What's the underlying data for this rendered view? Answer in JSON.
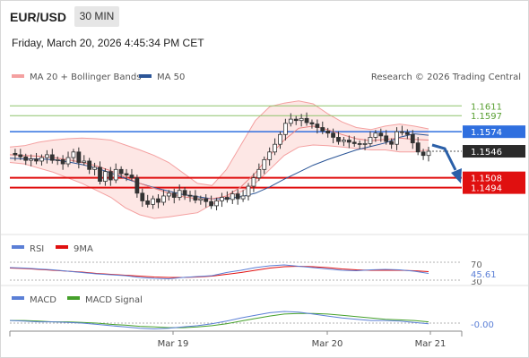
{
  "header": {
    "symbol": "EUR/USD",
    "timeframe": "30 MIN",
    "datetime": "Friday, March 20, 2026 4:45:34 PM CET"
  },
  "legend": {
    "bollinger": "MA 20 + Bollinger Bands",
    "ma50": "MA 50",
    "credit": "Research © 2026 Trading Central",
    "rsi": "RSI",
    "rsi_ma": "9MA",
    "macd": "MACD",
    "macd_signal": "MACD Signal"
  },
  "colors": {
    "candle": "#333333",
    "bollinger": "#f4a0a0",
    "bollinger_fill": "#fde3e1",
    "ma50": "#2b5597",
    "resistance": "#8dc46a",
    "pivot": "#2f6fdf",
    "support": "#e01010",
    "arrow": "#2a5fa8",
    "rsi": "#5b7fd6",
    "rsi_ma": "#e01010",
    "macd": "#5b7fd6",
    "macd_signal": "#45a02a"
  },
  "chart_data": {
    "type": "candlestick",
    "y_range": [
      1.1432,
      1.1637
    ],
    "levels": {
      "resistance": [
        1.1611,
        1.1597
      ],
      "pivot": 1.1574,
      "last_price": 1.1546,
      "support": [
        1.1508,
        1.1494
      ]
    },
    "x_ticks": [
      "Mar 19",
      "Mar 20",
      "Mar 21"
    ],
    "rsi": {
      "level_high": "70",
      "value": "45.61",
      "level_low": "30"
    },
    "macd": {
      "value": "-0.00"
    },
    "close_path": [
      1.1543,
      1.1541,
      1.1538,
      1.1533,
      1.1535,
      1.1532,
      1.1537,
      1.1541,
      1.1533,
      1.1534,
      1.1528,
      1.1537,
      1.1545,
      1.153,
      1.1532,
      1.152,
      1.1523,
      1.1503,
      1.1517,
      1.1505,
      1.152,
      1.1514,
      1.1512,
      1.1508,
      1.1486,
      1.1475,
      1.147,
      1.1478,
      1.1473,
      1.1482,
      1.1486,
      1.148,
      1.149,
      1.1483,
      1.1482,
      1.1476,
      1.1478,
      1.1474,
      1.1468,
      1.1475,
      1.148,
      1.1477,
      1.1485,
      1.1478,
      1.1482,
      1.1496,
      1.1508,
      1.152,
      1.1534,
      1.1545,
      1.1556,
      1.157,
      1.1586,
      1.1592,
      1.159,
      1.1593,
      1.1587,
      1.1585,
      1.158,
      1.1575,
      1.1572,
      1.1566,
      1.156,
      1.1562,
      1.1559,
      1.1557,
      1.1556,
      1.1557,
      1.1566,
      1.1572,
      1.1568,
      1.156,
      1.1556,
      1.1574,
      1.1573,
      1.157,
      1.1558,
      1.1545,
      1.154,
      1.1546
    ],
    "bollinger_upper": [
      1.1552,
      1.1554,
      1.1559,
      1.1562,
      1.1564,
      1.1565,
      1.1564,
      1.1562,
      1.1555,
      1.1548,
      1.154,
      1.153,
      1.1515,
      1.15,
      1.1497,
      1.152,
      1.1555,
      1.159,
      1.161,
      1.1615,
      1.1618,
      1.1614,
      1.16,
      1.1588,
      1.158,
      1.1577,
      1.1582,
      1.1585,
      1.1582,
      1.1578
    ],
    "bollinger_lower": [
      1.153,
      1.1528,
      1.1522,
      1.1516,
      1.1508,
      1.15,
      1.149,
      1.148,
      1.1465,
      1.1455,
      1.145,
      1.1452,
      1.1455,
      1.1458,
      1.147,
      1.148,
      1.1488,
      1.15,
      1.152,
      1.154,
      1.1552,
      1.1555,
      1.1554,
      1.1552,
      1.155,
      1.1548,
      1.1548,
      1.1545,
      1.1545,
      1.1548
    ],
    "ma20": [
      1.1541,
      1.154,
      1.1539,
      1.1537,
      1.1534,
      1.153,
      1.1525,
      1.1518,
      1.1509,
      1.15,
      1.1493,
      1.1486,
      1.1481,
      1.1478,
      1.1478,
      1.1482,
      1.1495,
      1.1515,
      1.154,
      1.1562,
      1.1579,
      1.1582,
      1.1577,
      1.157,
      1.1564,
      1.1561,
      1.1563,
      1.1565,
      1.1563,
      1.1562
    ],
    "ma50": [
      1.1536,
      1.1535,
      1.1535,
      1.1534,
      1.1531,
      1.1527,
      1.1522,
      1.1515,
      1.1507,
      1.15,
      1.1494,
      1.1489,
      1.1484,
      1.1481,
      1.1478,
      1.1478,
      1.1481,
      1.1486,
      1.1495,
      1.1506,
      1.1516,
      1.1526,
      1.1534,
      1.1541,
      1.1548,
      1.1553,
      1.1558,
      1.1566,
      1.1571,
      1.1569
    ],
    "rsi_series": [
      58,
      57,
      55,
      53,
      50,
      47,
      44,
      42,
      40,
      36,
      34,
      33,
      36,
      38,
      40,
      47,
      52,
      58,
      62,
      64,
      61,
      58,
      55,
      52,
      51,
      53,
      54,
      53,
      50,
      45
    ],
    "rsi_ma_series": [
      57,
      56,
      54,
      52,
      50,
      48,
      45,
      43,
      41,
      39,
      37,
      36,
      36,
      37,
      39,
      43,
      47,
      52,
      57,
      60,
      61,
      60,
      58,
      55,
      53,
      52,
      52,
      52,
      51,
      49
    ],
    "macd_series": [
      0.0004,
      0.0003,
      0.0002,
      0.0002,
      0.0001,
      0.0,
      -0.0002,
      -0.0004,
      -0.0006,
      -0.0008,
      -0.0009,
      -0.0008,
      -0.0006,
      -0.0004,
      -0.0001,
      0.0003,
      0.0008,
      0.0012,
      0.0016,
      0.0018,
      0.0017,
      0.0014,
      0.0011,
      0.0008,
      0.0006,
      0.0004,
      0.0004,
      0.0003,
      0.0001,
      -0.0001
    ],
    "macd_signal_series": [
      0.0004,
      0.0004,
      0.0003,
      0.0002,
      0.0002,
      0.0001,
      0.0,
      -0.0002,
      -0.0003,
      -0.0005,
      -0.0006,
      -0.0007,
      -0.0007,
      -0.0006,
      -0.0004,
      -0.0001,
      0.0003,
      0.0007,
      0.0011,
      0.0014,
      0.0015,
      0.0015,
      0.0014,
      0.0012,
      0.001,
      0.0008,
      0.0006,
      0.0005,
      0.0004,
      0.0002
    ]
  }
}
